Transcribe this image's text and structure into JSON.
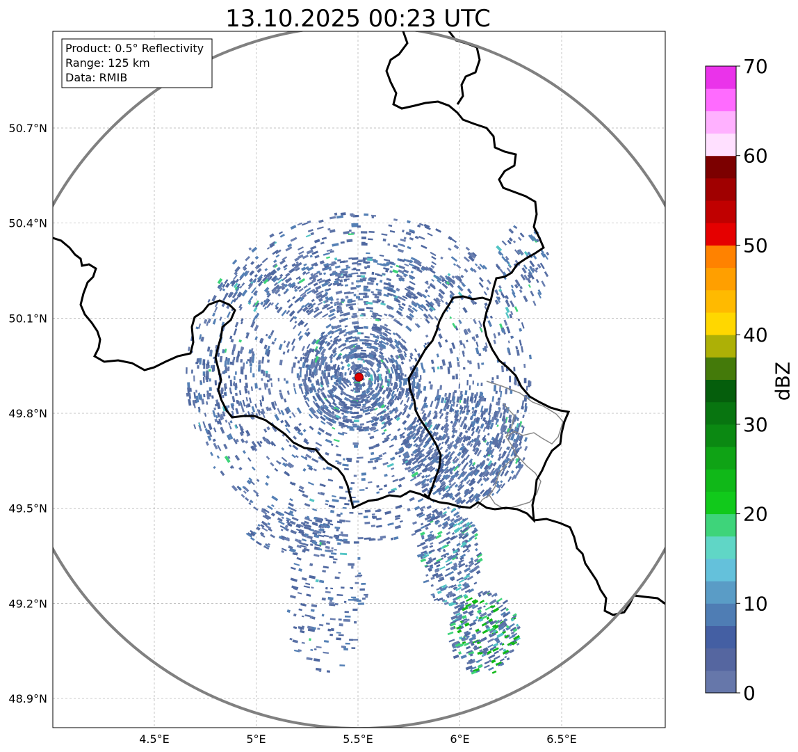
{
  "title": "13.10.2025 00:23 UTC",
  "info_box": {
    "product": "Product: 0.5° Reflectivity",
    "range": "Range: 125 km",
    "data": "Data: RMIB"
  },
  "axes": {
    "lon_ticks": [
      {
        "value": 4.5,
        "label": "4.5°E"
      },
      {
        "value": 5.0,
        "label": "5°E"
      },
      {
        "value": 5.5,
        "label": "5.5°E"
      },
      {
        "value": 6.0,
        "label": "6°E"
      },
      {
        "value": 6.5,
        "label": "6.5°E"
      }
    ],
    "lat_ticks": [
      {
        "value": 50.7,
        "label": "50.7°N"
      },
      {
        "value": 50.4,
        "label": "50.4°N"
      },
      {
        "value": 50.1,
        "label": "50.1°N"
      },
      {
        "value": 49.8,
        "label": "49.8°N"
      },
      {
        "value": 49.5,
        "label": "49.5°N"
      },
      {
        "value": 49.2,
        "label": "49.2°N"
      },
      {
        "value": 48.9,
        "label": "48.9°N"
      }
    ],
    "lon_range": [
      3.98,
      7.0
    ],
    "lat_range": [
      48.8,
      50.99
    ],
    "grid": true
  },
  "radar": {
    "lon": 5.505,
    "lat": 49.914,
    "range_km": 125
  },
  "colorbar": {
    "label": "dBZ",
    "min": 0,
    "max": 70,
    "ticks": [
      {
        "value": 0,
        "label": "0"
      },
      {
        "value": 10,
        "label": "10"
      },
      {
        "value": 20,
        "label": "20"
      },
      {
        "value": 30,
        "label": "30"
      },
      {
        "value": 40,
        "label": "40"
      },
      {
        "value": 50,
        "label": "50"
      },
      {
        "value": 60,
        "label": "60"
      },
      {
        "value": 70,
        "label": "70"
      }
    ],
    "colors": [
      "#6677aa",
      "#5566a0",
      "#445fa3",
      "#4f7db4",
      "#5a9cc6",
      "#64c1db",
      "#60d6c6",
      "#3ed47a",
      "#11c91b",
      "#10b818",
      "#0fa315",
      "#0b8912",
      "#087510",
      "#055e0c",
      "#447a0a",
      "#adb006",
      "#ffd700",
      "#ffba00",
      "#ff9f00",
      "#ff8200",
      "#e50000",
      "#c00000",
      "#a00000",
      "#7c0000",
      "#ffe0ff",
      "#ffb1ff",
      "#ff6bff",
      "#ea33ea"
    ]
  },
  "colors": {
    "low": "#5b72a6",
    "cyan": "#52c4c4",
    "green": "#3ed47a",
    "deep_green": "#11b818",
    "border": "#000000",
    "admin_border": "#888888",
    "range_ring": "#808080",
    "radar_marker": "#dd0000"
  }
}
